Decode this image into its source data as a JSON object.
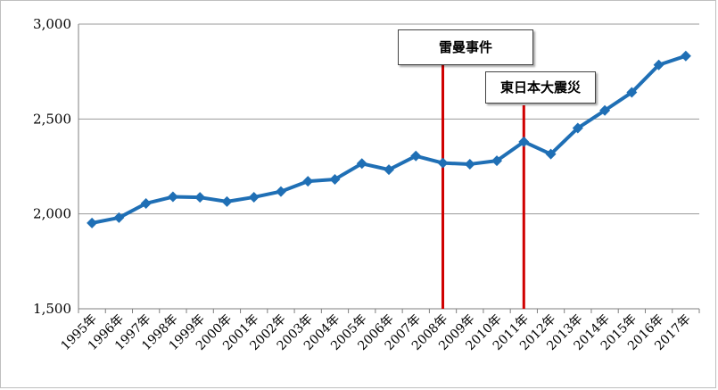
{
  "colors": {
    "series": "#1f6fb5",
    "event_line": "#d00000",
    "grid": "#9a9a9a"
  },
  "chart_data": {
    "type": "line",
    "title": "",
    "xlabel": "",
    "ylabel": "",
    "ylim": [
      1500,
      3000
    ],
    "yticks": [
      "1,500",
      "2,000",
      "2,500",
      "3,000"
    ],
    "grid": true,
    "legend": "none",
    "categories": [
      "1995年",
      "1996年",
      "1997年",
      "1998年",
      "1999年",
      "2000年",
      "2001年",
      "2002年",
      "2003年",
      "2004年",
      "2005年",
      "2006年",
      "2007年",
      "2008年",
      "2009年",
      "2010年",
      "2011年",
      "2012年",
      "2013年",
      "2014年",
      "2015年",
      "2016年",
      "2017年"
    ],
    "series": [
      {
        "values": [
          1952,
          1980,
          2055,
          2090,
          2087,
          2065,
          2088,
          2118,
          2172,
          2182,
          2265,
          2233,
          2305,
          2268,
          2262,
          2280,
          2380,
          2315,
          2452,
          2545,
          2640,
          2785,
          2832
        ]
      }
    ],
    "annotations": [
      {
        "label": "雷曼事件",
        "x_position": 13.5
      },
      {
        "label": "東日本大震災",
        "x_position": 16.5
      }
    ]
  }
}
